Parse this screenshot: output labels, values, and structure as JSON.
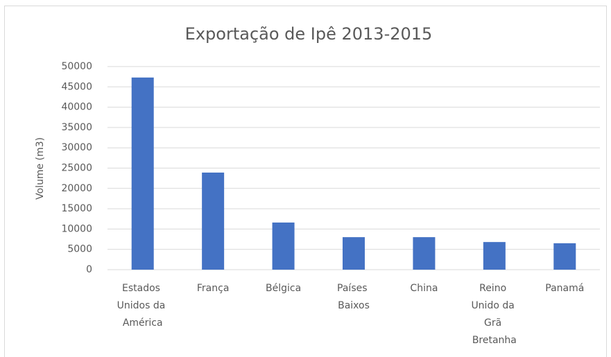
{
  "chart_data": {
    "type": "bar",
    "title": "Exportação de Ipê 2013-2015",
    "y_label": "Volume (m3)",
    "categories": [
      "Estados Unidos da América",
      "França",
      "Bélgica",
      "Países Baixos",
      "China",
      "Reino Unido da Grã Bretanha",
      "Panamá"
    ],
    "values": [
      47300,
      23900,
      11600,
      8000,
      8000,
      6800,
      6500
    ],
    "color": "#4472c4",
    "ylim": [
      0,
      50000
    ],
    "yticks": [
      0,
      5000,
      10000,
      15000,
      20000,
      25000,
      30000,
      35000,
      40000,
      45000,
      50000
    ],
    "grid": true
  }
}
